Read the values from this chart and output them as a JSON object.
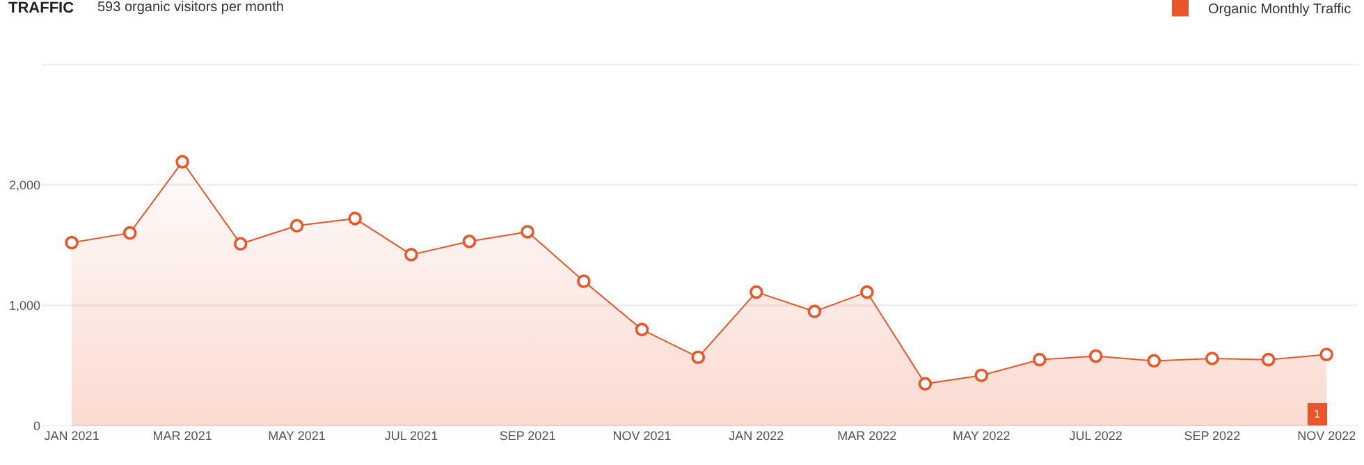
{
  "chart_data": {
    "type": "area",
    "title": "TRAFFIC",
    "subtitle": "593 organic visitors per month",
    "x": [
      "2021-01",
      "2021-02",
      "2021-03",
      "2021-04",
      "2021-05",
      "2021-06",
      "2021-07",
      "2021-08",
      "2021-09",
      "2021-10",
      "2021-11",
      "2021-12",
      "2022-01",
      "2022-02",
      "2022-03",
      "2022-04",
      "2022-05",
      "2022-06",
      "2022-07",
      "2022-08",
      "2022-09",
      "2022-10",
      "2022-11"
    ],
    "series": [
      {
        "name": "Organic Monthly Traffic",
        "color": "#e8562a",
        "values": [
          1520,
          1600,
          2190,
          1510,
          1660,
          1720,
          1420,
          1530,
          1610,
          1200,
          800,
          570,
          1110,
          950,
          1110,
          350,
          420,
          550,
          580,
          540,
          560,
          550,
          593
        ]
      }
    ],
    "xlim": [
      "2020-12-16",
      "2022-11-18"
    ],
    "xticks": [
      {
        "value": "2021-01",
        "label": "JAN 2021"
      },
      {
        "value": "2021-03",
        "label": "MAR 2021"
      },
      {
        "value": "2021-05",
        "label": "MAY 2021"
      },
      {
        "value": "2021-07",
        "label": "JUL 2021"
      },
      {
        "value": "2021-09",
        "label": "SEP 2021"
      },
      {
        "value": "2021-11",
        "label": "NOV 2021"
      },
      {
        "value": "2022-01",
        "label": "JAN 2022"
      },
      {
        "value": "2022-03",
        "label": "MAR 2022"
      },
      {
        "value": "2022-05",
        "label": "MAY 2022"
      },
      {
        "value": "2022-07",
        "label": "JUL 2022"
      },
      {
        "value": "2022-09",
        "label": "SEP 2022"
      },
      {
        "value": "2022-11",
        "label": "NOV 2022"
      }
    ],
    "ylim": [
      0,
      3000
    ],
    "yticks": [
      {
        "value": 0,
        "label": "0"
      },
      {
        "value": 1000,
        "label": "1,000"
      },
      {
        "value": 2000,
        "label": "2,000"
      },
      {
        "value": 3000,
        "label": null
      }
    ],
    "annotations": [
      {
        "text": "1",
        "x": "2022-10-27",
        "y": 0
      }
    ],
    "grid": "y",
    "legend": "top right",
    "marker": "circle",
    "line_style": "solid"
  }
}
